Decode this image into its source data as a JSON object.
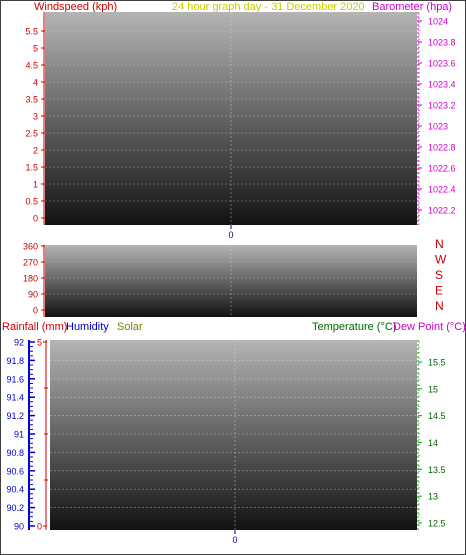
{
  "header": {
    "left_label": "Windspeed (kph)",
    "center_label": "24 hour graph day - 31 December 2020",
    "right_label": "Barometer (hpa)"
  },
  "colors": {
    "wind": "#cc0000",
    "barometer": "#cc00cc",
    "header_center": "#cccc00",
    "rain": "#cc0000",
    "humidity": "#0000cc",
    "solar": "#808000",
    "temperature": "#006600",
    "dewpoint": "#cc00cc",
    "x_axis": "#000080",
    "green_axis": "#00aa00"
  },
  "legend_bottom": {
    "rainfall": "Rainfall (mm)",
    "humidity": "Humidity",
    "solar": "Solar",
    "temperature": "Temperature (°C)",
    "dewpoint": "Dew Point (°C)"
  },
  "compass": [
    "N",
    "W",
    "S",
    "E",
    "N"
  ],
  "chart_data": [
    {
      "type": "line",
      "title": "24 hour graph day - 31 December 2020",
      "left_axis": {
        "label": "Windspeed (kph)",
        "range": [
          0,
          5.5
        ],
        "ticks": [
          "0",
          "0.5",
          "1",
          "1.5",
          "2",
          "2.5",
          "3",
          "3.5",
          "4",
          "4.5",
          "5",
          "5.5"
        ]
      },
      "right_axis": {
        "label": "Barometer (hpa)",
        "range": [
          1022.1,
          1024.1
        ],
        "ticks": [
          "1022.2",
          "1022.4",
          "1022.6",
          "1022.8",
          "1023",
          "1023.2",
          "1023.4",
          "1023.6",
          "1023.8",
          "1024"
        ]
      },
      "x_ticks": [
        "0"
      ],
      "grid": true,
      "series": []
    },
    {
      "type": "line",
      "left_axis": {
        "range": [
          0,
          360
        ],
        "ticks": [
          "0",
          "90",
          "180",
          "270",
          "360"
        ]
      },
      "right_labels": [
        "N",
        "W",
        "S",
        "E",
        "N"
      ],
      "grid": true,
      "series": []
    },
    {
      "type": "line",
      "left_axis_rain": {
        "label": "Rainfall (mm)",
        "range": [
          0,
          5
        ],
        "ticks": [
          "0",
          "5"
        ]
      },
      "left_axis_humidity": {
        "label": "Humidity",
        "range": [
          90,
          92
        ],
        "ticks": [
          "90",
          "90.2",
          "90.4",
          "90.6",
          "90.8",
          "91",
          "91.2",
          "91.4",
          "91.6",
          "91.8",
          "92"
        ]
      },
      "right_axis": {
        "label": "Temperature (°C)",
        "range": [
          12.4,
          15.9
        ],
        "ticks": [
          "12.5",
          "13",
          "13.5",
          "14",
          "14.5",
          "15",
          "15.5"
        ]
      },
      "x_ticks": [
        "0"
      ],
      "grid": true,
      "series": []
    }
  ]
}
